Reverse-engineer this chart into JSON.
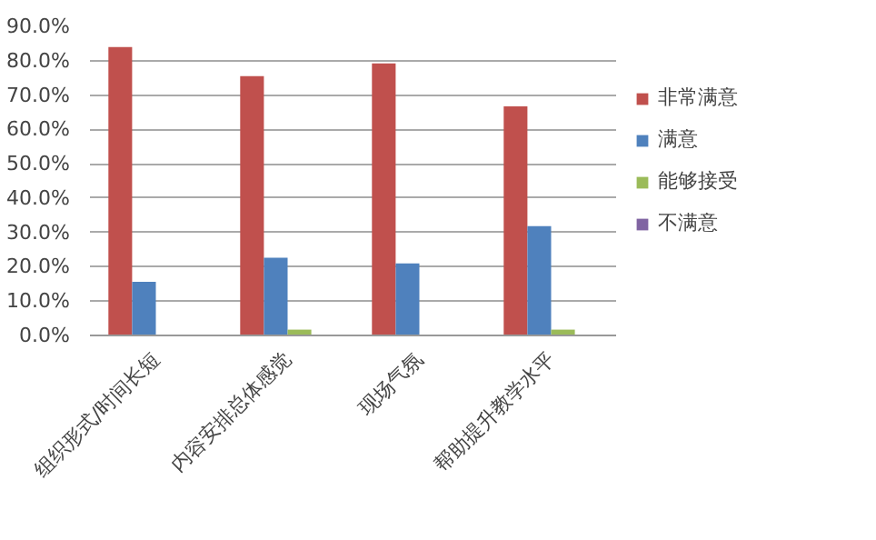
{
  "chart_data": {
    "type": "bar",
    "categories": [
      "组织形式/时间长短",
      "内容安排总体感觉",
      "现场气氛",
      "帮助提升教学水平"
    ],
    "series": [
      {
        "name": "非常满意",
        "color": "#c0504d",
        "values": [
          84.0,
          75.5,
          79.2,
          66.7
        ]
      },
      {
        "name": "满意",
        "color": "#4f81bd",
        "values": [
          15.6,
          22.6,
          21.0,
          31.8
        ]
      },
      {
        "name": "能够接受",
        "color": "#9bbb59",
        "values": [
          0,
          1.7,
          0,
          1.7
        ]
      },
      {
        "name": "不满意",
        "color": "#8064a2",
        "values": [
          0,
          0,
          0,
          0
        ]
      }
    ],
    "ylim": [
      0,
      90
    ],
    "yticks": [
      {
        "value": 0,
        "label": "0.0%"
      },
      {
        "value": 10,
        "label": "10.0%"
      },
      {
        "value": 20,
        "label": "20.0%"
      },
      {
        "value": 30,
        "label": "30.0%"
      },
      {
        "value": 40,
        "label": "40.0%"
      },
      {
        "value": 50,
        "label": "50.0%"
      },
      {
        "value": 60,
        "label": "60.0%"
      },
      {
        "value": 70,
        "label": "70.0%"
      },
      {
        "value": 80,
        "label": "80.0%"
      },
      {
        "value": 90,
        "label": "90.0%"
      }
    ],
    "grid": "y",
    "legend": "right"
  }
}
